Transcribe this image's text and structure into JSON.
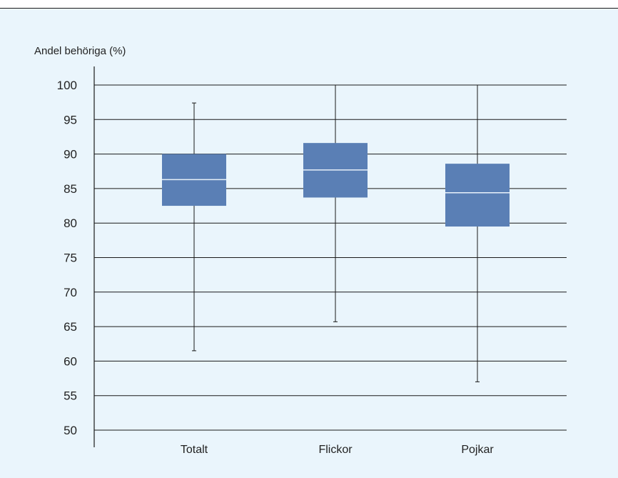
{
  "chart_data": {
    "type": "box",
    "ylabel": "Andel behöriga (%)",
    "ylim": [
      50,
      100
    ],
    "yticks": [
      100,
      95,
      90,
      85,
      80,
      75,
      70,
      65,
      60,
      55,
      50
    ],
    "grid": true,
    "categories": [
      "Totalt",
      "Flickor",
      "Pojkar"
    ],
    "boxes": [
      {
        "category": "Totalt",
        "min": 61.5,
        "q1": 82.5,
        "median": 86.3,
        "q3": 90.0,
        "max": 97.4
      },
      {
        "category": "Flickor",
        "min": 65.7,
        "q1": 83.7,
        "median": 87.7,
        "q3": 91.6,
        "max": 100.0
      },
      {
        "category": "Pojkar",
        "min": 57.0,
        "q1": 79.5,
        "median": 84.4,
        "q3": 88.6,
        "max": 100.0
      }
    ],
    "colors": {
      "box_fill": "#5a7fb5",
      "median_line": "#e8f1fa",
      "whisker": "#1a1a1a",
      "grid": "#1a1a1a",
      "background": "#eaf5fc"
    }
  }
}
